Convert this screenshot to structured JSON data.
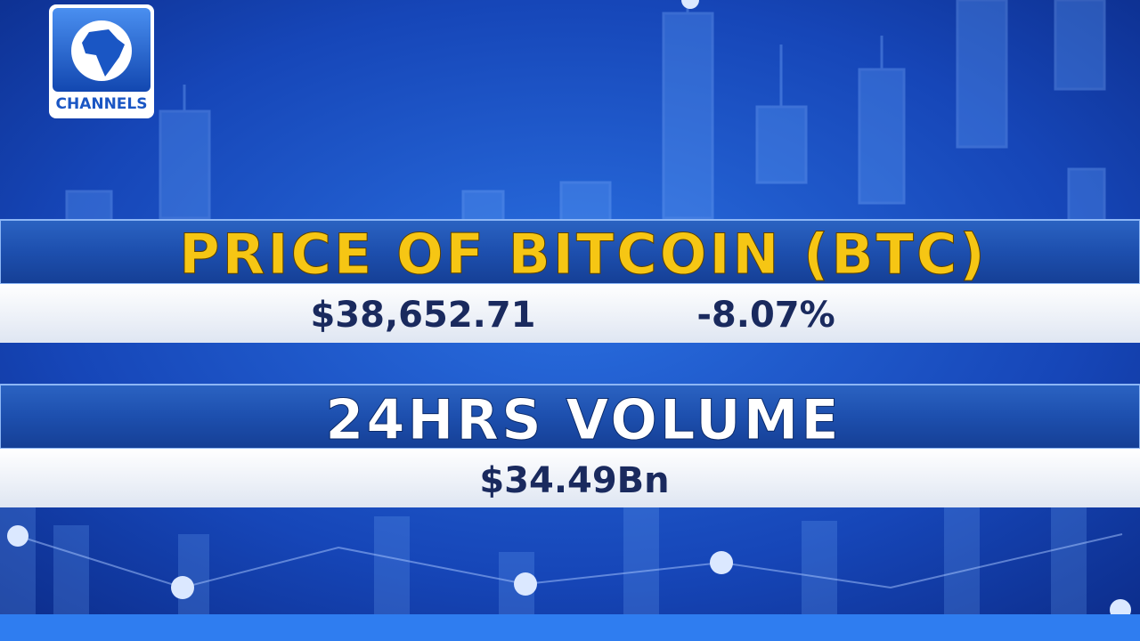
{
  "logo": {
    "text": "CHANNELS"
  },
  "price_panel": {
    "title": "PRICE OF BITCOIN (BTC)",
    "price": "$38,652.71",
    "change": "-8.07%"
  },
  "volume_panel": {
    "title": "24HRS VOLUME",
    "value": "$34.49Bn"
  }
}
